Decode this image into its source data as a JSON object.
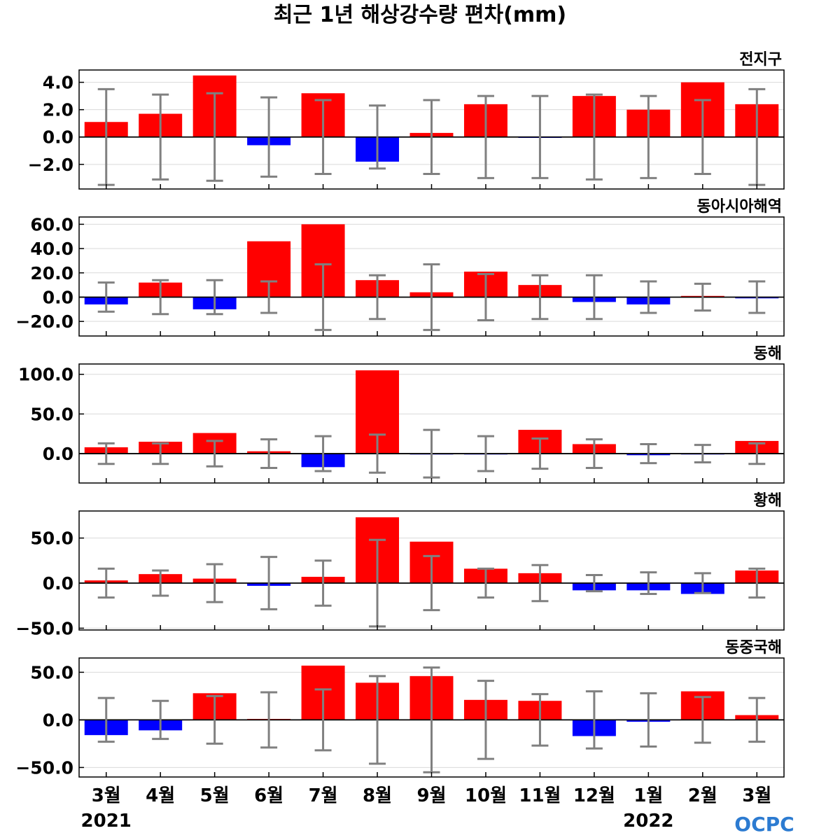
{
  "chart_data": {
    "type": "bar",
    "title": "최근 1년 해상강수량 편차(mm)",
    "categories": [
      "3월",
      "4월",
      "5월",
      "6월",
      "7월",
      "8월",
      "9월",
      "10월",
      "11월",
      "12월",
      "1월",
      "2월",
      "3월"
    ],
    "years": [
      {
        "label": "2021",
        "category_index": 0
      },
      {
        "label": "2022",
        "category_index": 10
      }
    ],
    "logo": "OCPC",
    "colors": {
      "positive": "#ff0000",
      "negative": "#0000ff",
      "error_bar": "#808080",
      "zero_line": "#000000",
      "grid": "#d9d9d9"
    },
    "grid": true,
    "panels": [
      {
        "name": "전지구",
        "ylim": [
          -3.8,
          4.9
        ],
        "yticks": [
          4.0,
          2.0,
          0.0,
          -2.0
        ],
        "ytick_labels": [
          "4.0",
          "2.0",
          "0.0",
          "−2.0"
        ],
        "values": [
          1.1,
          1.7,
          4.5,
          -0.6,
          3.2,
          -1.8,
          0.3,
          2.4,
          -0.05,
          3.0,
          2.0,
          4.0,
          2.4
        ],
        "error": [
          3.5,
          3.1,
          3.2,
          2.9,
          2.7,
          2.3,
          2.7,
          3.0,
          3.0,
          3.1,
          3.0,
          2.7,
          3.5
        ]
      },
      {
        "name": "동아시아해역",
        "ylim": [
          -32,
          66
        ],
        "yticks": [
          60.0,
          40.0,
          20.0,
          0.0,
          -20.0
        ],
        "ytick_labels": [
          "60.0",
          "40.0",
          "20.0",
          "0.0",
          "−20.0"
        ],
        "values": [
          -6,
          12,
          -10,
          46,
          60,
          14,
          4,
          21,
          10,
          -4,
          -6,
          1,
          -1
        ],
        "error": [
          12,
          14,
          14,
          13,
          27,
          18,
          27,
          19,
          18,
          18,
          13,
          11,
          13
        ]
      },
      {
        "name": "동해",
        "ylim": [
          -37,
          113
        ],
        "yticks": [
          100.0,
          50.0,
          0.0
        ],
        "ytick_labels": [
          "100.0",
          "50.0",
          "0.0"
        ],
        "values": [
          8,
          15,
          26,
          3,
          -17,
          105,
          -1,
          -1,
          30,
          12,
          -2,
          -1,
          16
        ],
        "error": [
          13,
          13,
          16,
          18,
          22,
          24,
          30,
          22,
          19,
          18,
          12,
          11,
          13
        ]
      },
      {
        "name": "황해",
        "ylim": [
          -52,
          80
        ],
        "yticks": [
          50.0,
          0.0,
          -50.0
        ],
        "ytick_labels": [
          "50.0",
          "0.0",
          "−50.0"
        ],
        "values": [
          3,
          10,
          5,
          -3,
          7,
          73,
          46,
          16,
          11,
          -8,
          -8,
          -12,
          14
        ],
        "error": [
          16,
          14,
          21,
          29,
          25,
          48,
          30,
          16,
          20,
          9,
          12,
          11,
          16
        ]
      },
      {
        "name": "동중국해",
        "ylim": [
          -60,
          65
        ],
        "yticks": [
          50.0,
          0.0,
          -50.0
        ],
        "ytick_labels": [
          "50.0",
          "0.0",
          "−50.0"
        ],
        "values": [
          -16,
          -11,
          28,
          1,
          57,
          39,
          46,
          21,
          20,
          -17,
          -2,
          30,
          5
        ],
        "error": [
          23,
          20,
          25,
          29,
          32,
          46,
          55,
          41,
          27,
          30,
          28,
          24,
          23
        ]
      }
    ]
  }
}
